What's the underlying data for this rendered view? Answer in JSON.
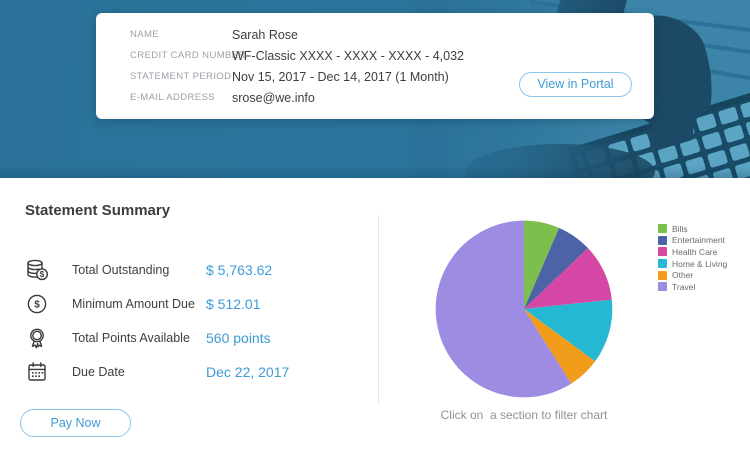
{
  "header_card": {
    "fields": [
      {
        "label": "NAME",
        "value": "Sarah Rose"
      },
      {
        "label": "CREDIT CARD NUMBER",
        "value": "WF-Classic XXXX - XXXX - XXXX - 4,032"
      },
      {
        "label": "STATEMENT PERIOD",
        "value": "Nov 15, 2017 - Dec 14, 2017 (1 Month)"
      },
      {
        "label": "E-MAIL ADDRESS",
        "value": "srose@we.info"
      }
    ],
    "view_in_portal_label": "View in Portal"
  },
  "summary": {
    "title": "Statement Summary",
    "rows": [
      {
        "icon": "coins-icon",
        "label": "Total Outstanding",
        "value": "$ 5,763.62"
      },
      {
        "icon": "dollar-circle-icon",
        "label": "Minimum Amount Due",
        "value": "$ 512.01"
      },
      {
        "icon": "medal-icon",
        "label": "Total Points Available",
        "value": "560 points"
      },
      {
        "icon": "calendar-icon",
        "label": "Due Date",
        "value": "Dec 22, 2017"
      }
    ],
    "pay_now_label": "Pay Now"
  },
  "chart_data": {
    "type": "pie",
    "title": "",
    "legend_position": "right",
    "start_angle_deg": 0,
    "direction": "clockwise",
    "hint": "Click on  a section to filter chart",
    "slices": [
      {
        "label": "Bills",
        "percent": 6.5,
        "color": "#7cbf4c"
      },
      {
        "label": "Entertainment",
        "percent": 6.4,
        "color": "#4d63a8"
      },
      {
        "label": "Health Care",
        "percent": 10.4,
        "color": "#d647a5"
      },
      {
        "label": "Home & Living",
        "percent": 11.8,
        "color": "#25b8d2"
      },
      {
        "label": "Other",
        "percent": 5.9,
        "color": "#f29c1b"
      },
      {
        "label": "Travel",
        "percent": 59.0,
        "color": "#9d8ce1"
      }
    ]
  },
  "colors": {
    "banner_blue": "#2a7299",
    "accent_blue": "#3d9bd5",
    "divider": "#e3e3e3"
  }
}
